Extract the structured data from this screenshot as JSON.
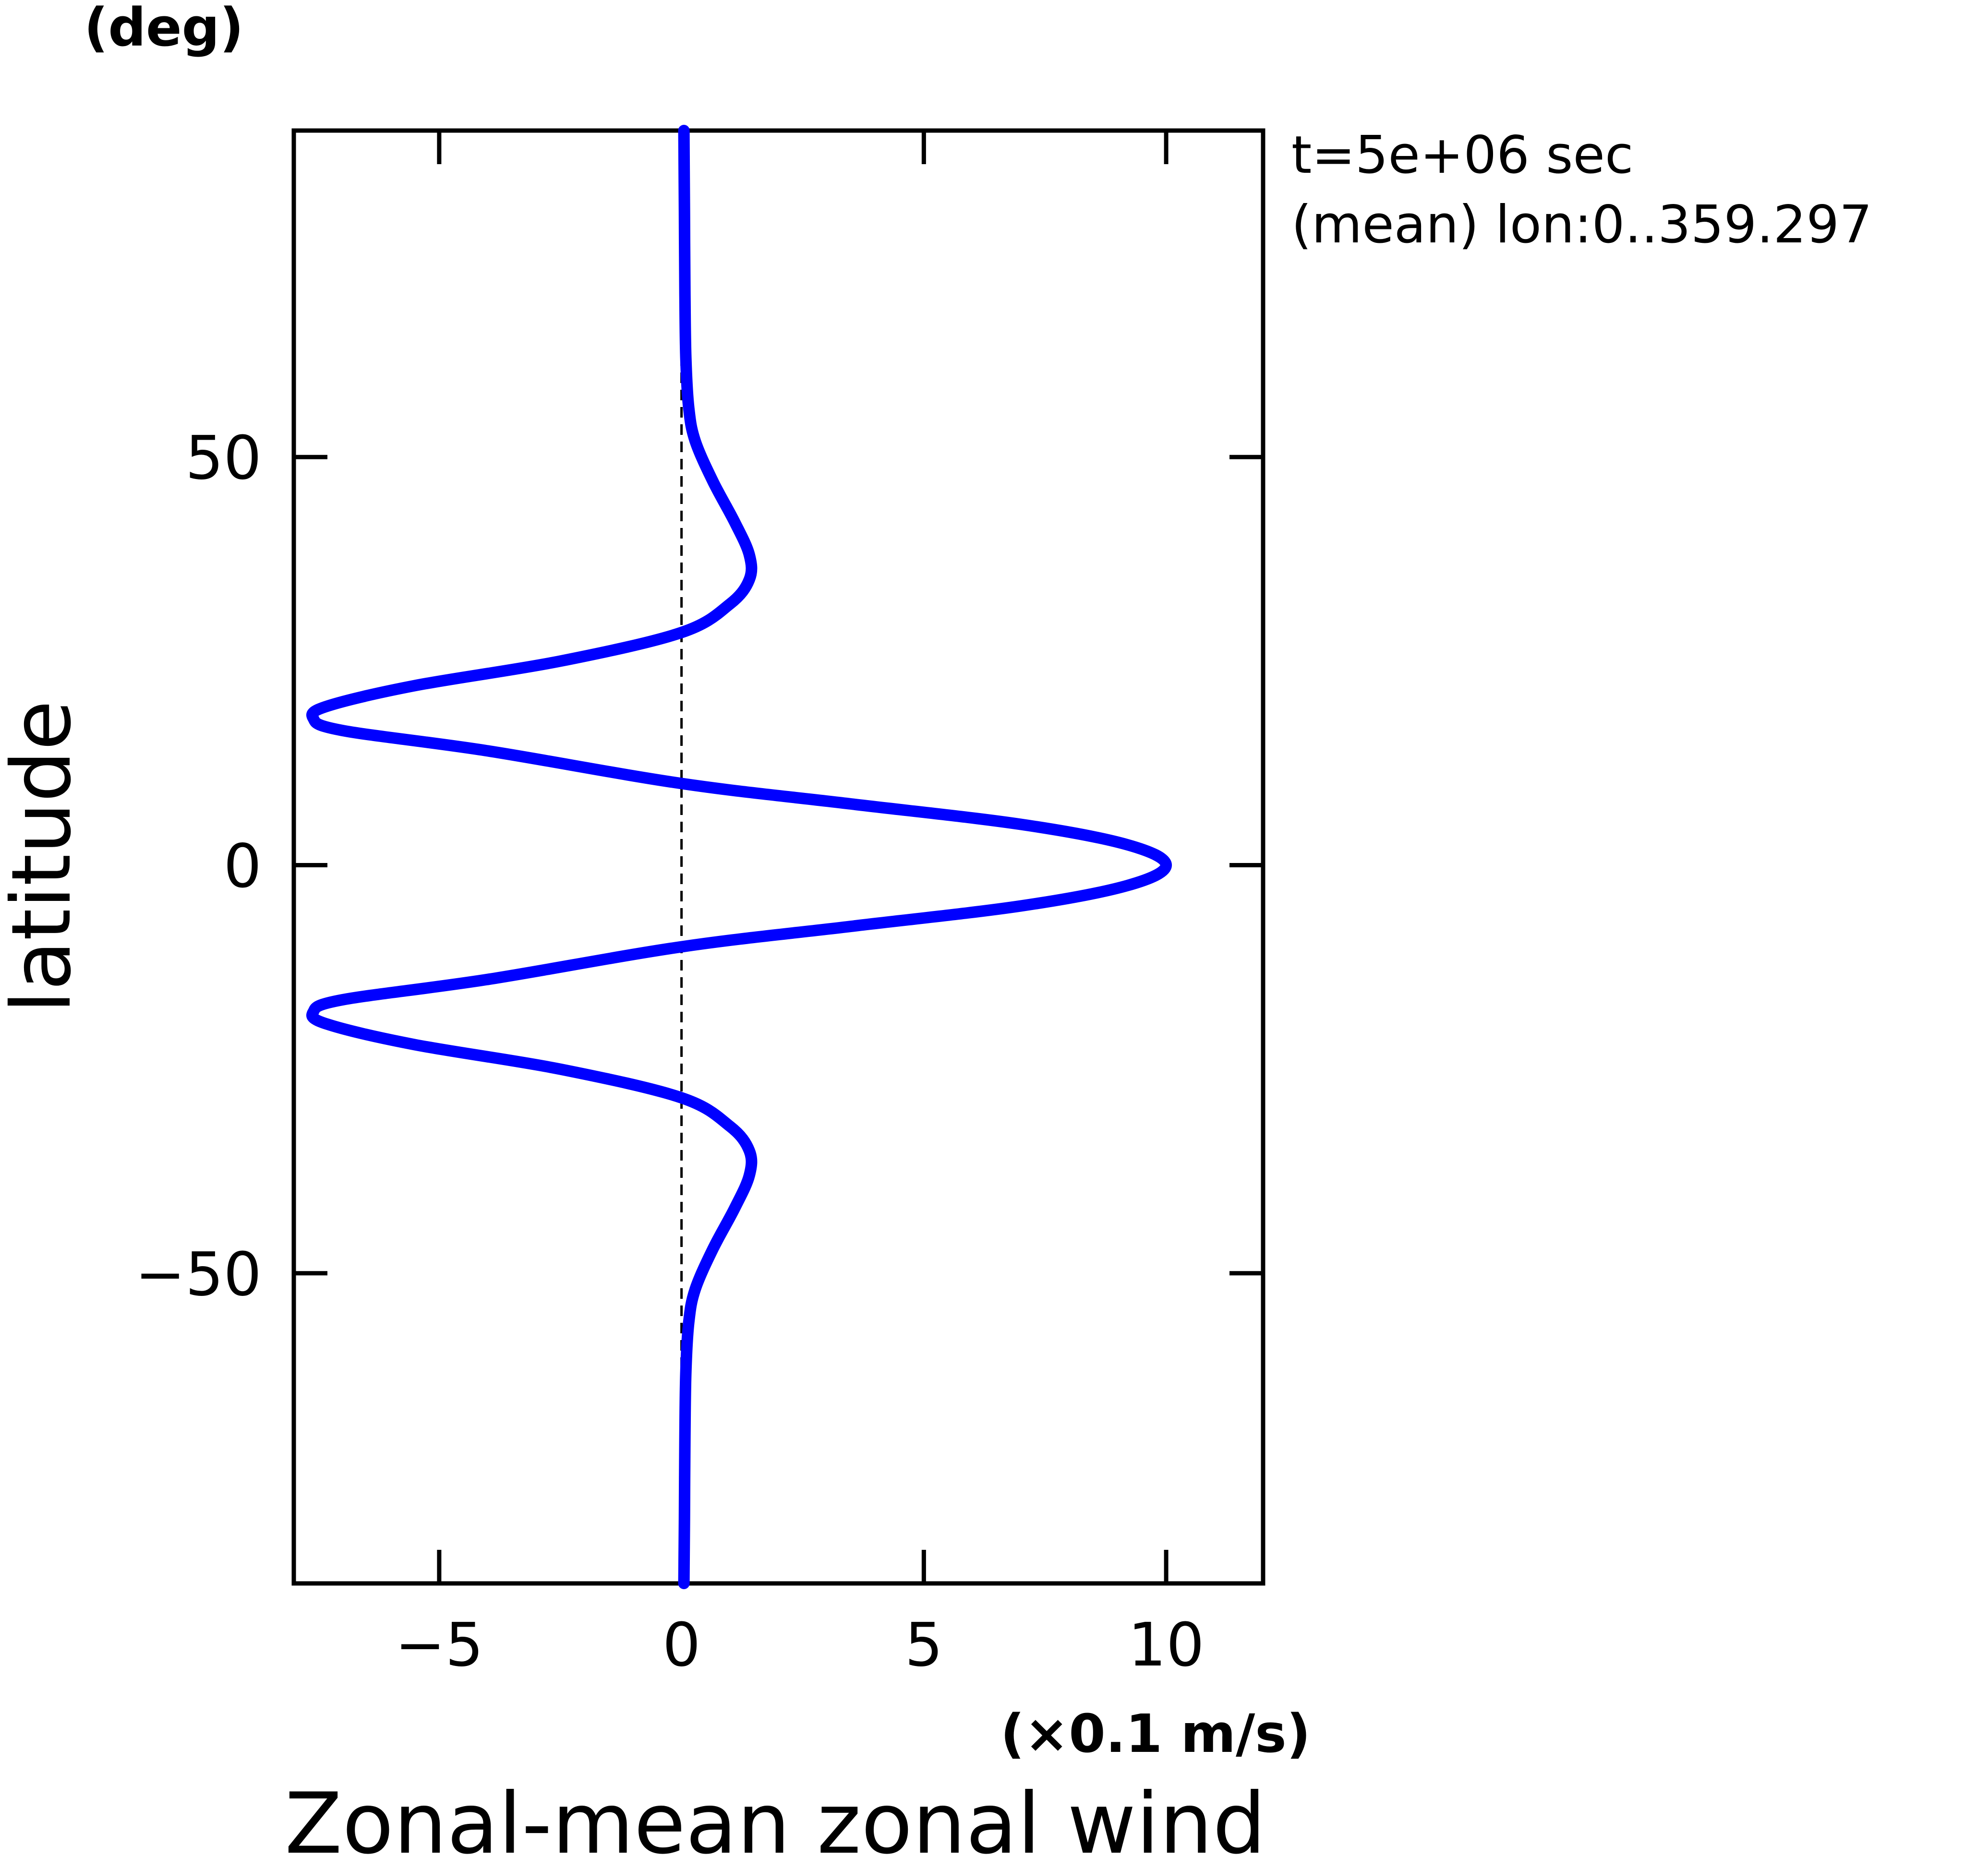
{
  "chart_data": {
    "type": "line",
    "title": "Zonal-mean zonal wind",
    "xlabel": "",
    "x_units": "(×0.1 m/s)",
    "ylabel": "latitude",
    "y_units": "(deg)",
    "xlim": [
      -8,
      12
    ],
    "ylim": [
      -88,
      90
    ],
    "x_ticks": [
      -5,
      0,
      5,
      10
    ],
    "x_tick_labels": [
      "−5",
      "0",
      "5",
      "10"
    ],
    "y_ticks": [
      -50,
      0,
      50
    ],
    "y_tick_labels": [
      "−50",
      "0",
      "50"
    ],
    "grid": false,
    "legend": "none",
    "annotations": [
      "t=5e+06 sec",
      "(mean) lon:0..359.297"
    ],
    "reference_line": {
      "x": 0,
      "style": "dashed"
    },
    "series": [
      {
        "color": "#0000ff",
        "points": [
          [
            0.05,
            -88
          ],
          [
            0.06,
            -80
          ],
          [
            0.07,
            -70
          ],
          [
            0.09,
            -62
          ],
          [
            0.15,
            -56
          ],
          [
            0.28,
            -52
          ],
          [
            0.65,
            -47
          ],
          [
            1.1,
            -42
          ],
          [
            1.4,
            -38
          ],
          [
            1.4,
            -35
          ],
          [
            1.0,
            -32
          ],
          [
            0.0,
            -28.5
          ],
          [
            -2.5,
            -25
          ],
          [
            -5.5,
            -22
          ],
          [
            -7.3,
            -19.5
          ],
          [
            -7.6,
            -18
          ],
          [
            -7.0,
            -16.5
          ],
          [
            -4.0,
            -14
          ],
          [
            0.0,
            -10
          ],
          [
            3.5,
            -7.5
          ],
          [
            7.0,
            -5
          ],
          [
            9.2,
            -2.5
          ],
          [
            10.0,
            0
          ],
          [
            9.2,
            2.5
          ],
          [
            7.0,
            5
          ],
          [
            3.5,
            7.5
          ],
          [
            0.0,
            10
          ],
          [
            -4.0,
            14
          ],
          [
            -7.0,
            16.5
          ],
          [
            -7.6,
            18
          ],
          [
            -7.3,
            19.5
          ],
          [
            -5.5,
            22
          ],
          [
            -2.5,
            25
          ],
          [
            0.0,
            28.5
          ],
          [
            1.0,
            32
          ],
          [
            1.4,
            35
          ],
          [
            1.4,
            38
          ],
          [
            1.1,
            42
          ],
          [
            0.65,
            47
          ],
          [
            0.28,
            52
          ],
          [
            0.15,
            56
          ],
          [
            0.09,
            62
          ],
          [
            0.07,
            70
          ],
          [
            0.06,
            80
          ],
          [
            0.05,
            90
          ]
        ]
      }
    ]
  }
}
